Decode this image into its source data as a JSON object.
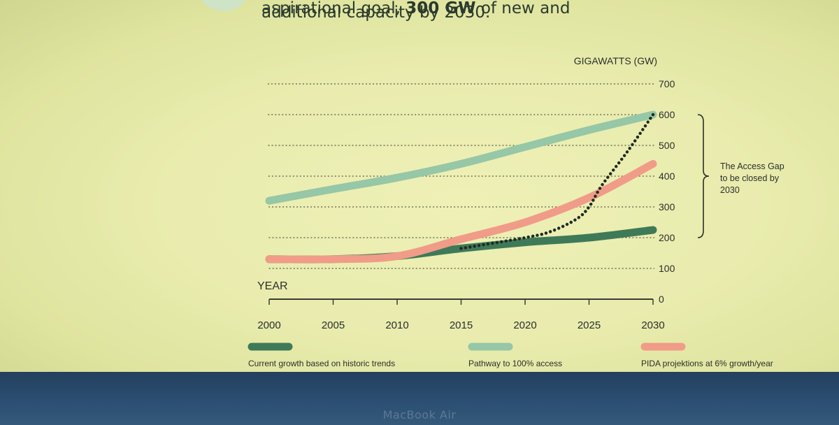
{
  "headline": {
    "line1_pre": "aspirational goal,",
    "line1_bold": "300 GW",
    "line1_post": "of new and",
    "line2": "additional capacity by 2030."
  },
  "bezel": {
    "label": "MacBook Air"
  },
  "colors": {
    "current": "#3f7a58",
    "pathway": "#96c7a6",
    "pida": "#f09c88",
    "target": "#1f2b22",
    "grid": "#555a4a"
  },
  "chart_data": {
    "type": "line",
    "ylabel": "GIGAWATTS (GW)",
    "xlabel": "YEAR",
    "x_ticks": [
      2000,
      2005,
      2010,
      2015,
      2020,
      2025,
      2030
    ],
    "y_ticks": [
      0,
      100,
      200,
      300,
      400,
      500,
      600,
      700
    ],
    "xlim": [
      2000,
      2030
    ],
    "ylim": [
      0,
      700
    ],
    "grid": true,
    "annotation": {
      "lines": [
        "The Access Gap",
        "to  be closed by",
        "2030"
      ],
      "span": [
        200,
        600
      ]
    },
    "series": [
      {
        "name": "Current growth based on historic trends",
        "key": "current",
        "x": [
          2000,
          2005,
          2010,
          2015,
          2020,
          2025,
          2030
        ],
        "y": [
          130,
          130,
          140,
          165,
          185,
          200,
          225
        ]
      },
      {
        "name": "Pathway to 100% access",
        "key": "pathway",
        "x": [
          2000,
          2005,
          2010,
          2015,
          2020,
          2025,
          2030
        ],
        "y": [
          320,
          358,
          395,
          440,
          495,
          550,
          600
        ]
      },
      {
        "name": "PIDA projektions at 6% growth/year",
        "key": "pida",
        "x": [
          2000,
          2005,
          2010,
          2015,
          2020,
          2025,
          2030
        ],
        "y": [
          130,
          130,
          140,
          195,
          250,
          330,
          440
        ]
      },
      {
        "name": "",
        "key": "target",
        "x": [
          2015,
          2020,
          2022,
          2024,
          2025,
          2026,
          2028,
          2030
        ],
        "y": [
          165,
          200,
          220,
          260,
          300,
          370,
          480,
          600
        ]
      }
    ]
  }
}
